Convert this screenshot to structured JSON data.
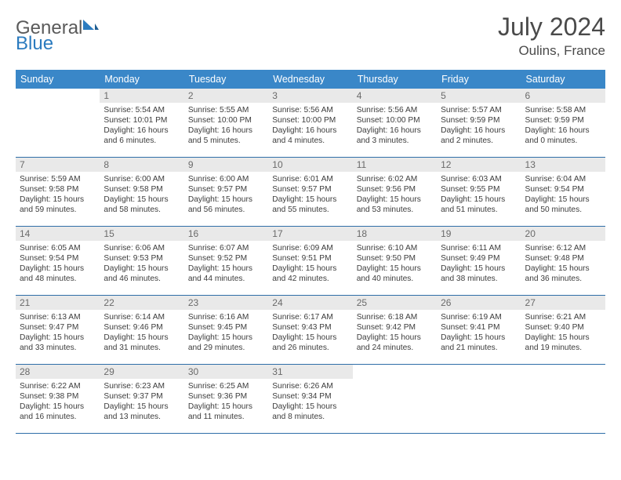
{
  "colors": {
    "header_bg": "#3a87c8",
    "header_text": "#ffffff",
    "row_divider": "#2f6ea8",
    "daynum_bg": "#e9e9e9",
    "daynum_text": "#6a6a6a",
    "body_text": "#3c3c3c",
    "page_bg": "#ffffff",
    "title_text": "#4a4a4a",
    "logo_gray": "#5a5a5a",
    "logo_blue": "#2b7bbf"
  },
  "logo": {
    "part1": "General",
    "part2": "Blue"
  },
  "title": "July 2024",
  "location": "Oulins, France",
  "weekdays": [
    "Sunday",
    "Monday",
    "Tuesday",
    "Wednesday",
    "Thursday",
    "Friday",
    "Saturday"
  ],
  "weeks": [
    [
      null,
      {
        "n": "1",
        "l1": "Sunrise: 5:54 AM",
        "l2": "Sunset: 10:01 PM",
        "l3": "Daylight: 16 hours",
        "l4": "and 6 minutes."
      },
      {
        "n": "2",
        "l1": "Sunrise: 5:55 AM",
        "l2": "Sunset: 10:00 PM",
        "l3": "Daylight: 16 hours",
        "l4": "and 5 minutes."
      },
      {
        "n": "3",
        "l1": "Sunrise: 5:56 AM",
        "l2": "Sunset: 10:00 PM",
        "l3": "Daylight: 16 hours",
        "l4": "and 4 minutes."
      },
      {
        "n": "4",
        "l1": "Sunrise: 5:56 AM",
        "l2": "Sunset: 10:00 PM",
        "l3": "Daylight: 16 hours",
        "l4": "and 3 minutes."
      },
      {
        "n": "5",
        "l1": "Sunrise: 5:57 AM",
        "l2": "Sunset: 9:59 PM",
        "l3": "Daylight: 16 hours",
        "l4": "and 2 minutes."
      },
      {
        "n": "6",
        "l1": "Sunrise: 5:58 AM",
        "l2": "Sunset: 9:59 PM",
        "l3": "Daylight: 16 hours",
        "l4": "and 0 minutes."
      }
    ],
    [
      {
        "n": "7",
        "l1": "Sunrise: 5:59 AM",
        "l2": "Sunset: 9:58 PM",
        "l3": "Daylight: 15 hours",
        "l4": "and 59 minutes."
      },
      {
        "n": "8",
        "l1": "Sunrise: 6:00 AM",
        "l2": "Sunset: 9:58 PM",
        "l3": "Daylight: 15 hours",
        "l4": "and 58 minutes."
      },
      {
        "n": "9",
        "l1": "Sunrise: 6:00 AM",
        "l2": "Sunset: 9:57 PM",
        "l3": "Daylight: 15 hours",
        "l4": "and 56 minutes."
      },
      {
        "n": "10",
        "l1": "Sunrise: 6:01 AM",
        "l2": "Sunset: 9:57 PM",
        "l3": "Daylight: 15 hours",
        "l4": "and 55 minutes."
      },
      {
        "n": "11",
        "l1": "Sunrise: 6:02 AM",
        "l2": "Sunset: 9:56 PM",
        "l3": "Daylight: 15 hours",
        "l4": "and 53 minutes."
      },
      {
        "n": "12",
        "l1": "Sunrise: 6:03 AM",
        "l2": "Sunset: 9:55 PM",
        "l3": "Daylight: 15 hours",
        "l4": "and 51 minutes."
      },
      {
        "n": "13",
        "l1": "Sunrise: 6:04 AM",
        "l2": "Sunset: 9:54 PM",
        "l3": "Daylight: 15 hours",
        "l4": "and 50 minutes."
      }
    ],
    [
      {
        "n": "14",
        "l1": "Sunrise: 6:05 AM",
        "l2": "Sunset: 9:54 PM",
        "l3": "Daylight: 15 hours",
        "l4": "and 48 minutes."
      },
      {
        "n": "15",
        "l1": "Sunrise: 6:06 AM",
        "l2": "Sunset: 9:53 PM",
        "l3": "Daylight: 15 hours",
        "l4": "and 46 minutes."
      },
      {
        "n": "16",
        "l1": "Sunrise: 6:07 AM",
        "l2": "Sunset: 9:52 PM",
        "l3": "Daylight: 15 hours",
        "l4": "and 44 minutes."
      },
      {
        "n": "17",
        "l1": "Sunrise: 6:09 AM",
        "l2": "Sunset: 9:51 PM",
        "l3": "Daylight: 15 hours",
        "l4": "and 42 minutes."
      },
      {
        "n": "18",
        "l1": "Sunrise: 6:10 AM",
        "l2": "Sunset: 9:50 PM",
        "l3": "Daylight: 15 hours",
        "l4": "and 40 minutes."
      },
      {
        "n": "19",
        "l1": "Sunrise: 6:11 AM",
        "l2": "Sunset: 9:49 PM",
        "l3": "Daylight: 15 hours",
        "l4": "and 38 minutes."
      },
      {
        "n": "20",
        "l1": "Sunrise: 6:12 AM",
        "l2": "Sunset: 9:48 PM",
        "l3": "Daylight: 15 hours",
        "l4": "and 36 minutes."
      }
    ],
    [
      {
        "n": "21",
        "l1": "Sunrise: 6:13 AM",
        "l2": "Sunset: 9:47 PM",
        "l3": "Daylight: 15 hours",
        "l4": "and 33 minutes."
      },
      {
        "n": "22",
        "l1": "Sunrise: 6:14 AM",
        "l2": "Sunset: 9:46 PM",
        "l3": "Daylight: 15 hours",
        "l4": "and 31 minutes."
      },
      {
        "n": "23",
        "l1": "Sunrise: 6:16 AM",
        "l2": "Sunset: 9:45 PM",
        "l3": "Daylight: 15 hours",
        "l4": "and 29 minutes."
      },
      {
        "n": "24",
        "l1": "Sunrise: 6:17 AM",
        "l2": "Sunset: 9:43 PM",
        "l3": "Daylight: 15 hours",
        "l4": "and 26 minutes."
      },
      {
        "n": "25",
        "l1": "Sunrise: 6:18 AM",
        "l2": "Sunset: 9:42 PM",
        "l3": "Daylight: 15 hours",
        "l4": "and 24 minutes."
      },
      {
        "n": "26",
        "l1": "Sunrise: 6:19 AM",
        "l2": "Sunset: 9:41 PM",
        "l3": "Daylight: 15 hours",
        "l4": "and 21 minutes."
      },
      {
        "n": "27",
        "l1": "Sunrise: 6:21 AM",
        "l2": "Sunset: 9:40 PM",
        "l3": "Daylight: 15 hours",
        "l4": "and 19 minutes."
      }
    ],
    [
      {
        "n": "28",
        "l1": "Sunrise: 6:22 AM",
        "l2": "Sunset: 9:38 PM",
        "l3": "Daylight: 15 hours",
        "l4": "and 16 minutes."
      },
      {
        "n": "29",
        "l1": "Sunrise: 6:23 AM",
        "l2": "Sunset: 9:37 PM",
        "l3": "Daylight: 15 hours",
        "l4": "and 13 minutes."
      },
      {
        "n": "30",
        "l1": "Sunrise: 6:25 AM",
        "l2": "Sunset: 9:36 PM",
        "l3": "Daylight: 15 hours",
        "l4": "and 11 minutes."
      },
      {
        "n": "31",
        "l1": "Sunrise: 6:26 AM",
        "l2": "Sunset: 9:34 PM",
        "l3": "Daylight: 15 hours",
        "l4": "and 8 minutes."
      },
      null,
      null,
      null
    ]
  ]
}
